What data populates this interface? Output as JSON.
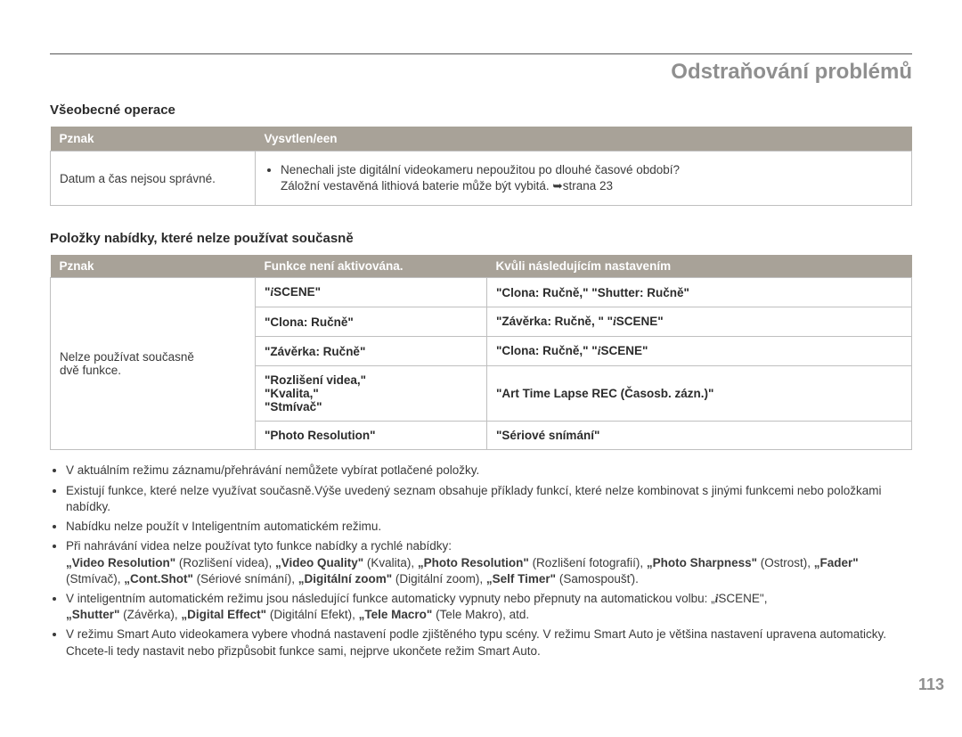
{
  "pageTitle": "Odstraňování problémů",
  "pageNumber": "113",
  "section1": {
    "heading": "Všeobecné operace",
    "headers": [
      "Pznak",
      "Vysvtlen/een"
    ],
    "row": {
      "symptom": "Datum a čas nejsou správné.",
      "line1": "Nenechali jste digitální videokameru nepoužitou po dlouhé časové období?",
      "line2a": "Záložní vestavěná lithiová baterie může být vybitá. ",
      "line2b": "strana 23"
    }
  },
  "section2": {
    "heading": "Položky nabídky, které nelze používat současně",
    "headers": [
      "Pznak",
      "Funkce není aktivována.",
      "Kvůli následujícím nastavením"
    ],
    "rowLabelA": "Nelze používat současně",
    "rowLabelB": "dvě funkce.",
    "rows": [
      {
        "func": "\"ℹSCENE\"",
        "due": "\"Clona: Ručně,\" \"Shutter: Ručně\""
      },
      {
        "func": "\"Clona: Ručně\"",
        "due": "\"Závěrka: Ručně, \" \"ℹSCENE\""
      },
      {
        "func": "\"Závěrka: Ručně\"",
        "due": "\"Clona: Ručně,\" \"ℹSCENE\""
      },
      {
        "func": "\"Rozlišení videa,\"\n\"Kvalita,\"\n\"Stmívač\"",
        "due": "\"Art Time Lapse REC (Časosb. zázn.)\""
      },
      {
        "func": "\"Photo Resolution\"",
        "due": "\"Sériové snímání\""
      }
    ]
  },
  "notes": {
    "n1": "V aktuálním režimu záznamu/přehrávání nemůžete vybírat potlačené položky.",
    "n2": "Existují funkce, které nelze využívat současně.Výše uvedený seznam obsahuje příklady funkcí, které nelze kombinovat s jinými funkcemi nebo položkami nabídky.",
    "n3": "Nabídku nelze použít v Inteligentním automatickém režimu.",
    "n4a": "Při nahrávání videa nelze používat tyto funkce nabídky a rychlé nabídky:",
    "n4b_parts": [
      {
        "b": "„Video Resolution\""
      },
      {
        "t": " (Rozlišení videa), "
      },
      {
        "b": "„Video Quality\""
      },
      {
        "t": " (Kvalita), "
      },
      {
        "b": "„Photo Resolution\""
      },
      {
        "t": " (Rozlišení fotografií), "
      },
      {
        "b": "„Photo Sharpness\""
      },
      {
        "t": " (Ostrost), "
      },
      {
        "b": "„Fader\""
      },
      {
        "t": " (Stmívač), "
      },
      {
        "b": "„Cont.Shot\""
      },
      {
        "t": " (Sériové snímání), "
      },
      {
        "b": "„Digitální zoom\""
      },
      {
        "t": " (Digitální zoom), "
      },
      {
        "b": "„Self Timer\""
      },
      {
        "t": " (Samospoušť)."
      }
    ],
    "n5a": "V inteligentním automatickém režimu jsou následující funkce automaticky vypnuty nebo přepnuty na automatickou volbu: „",
    "n5b": "SCENE\", ",
    "n5b2_parts": [
      {
        "b": "„Shutter\""
      },
      {
        "t": " (Závěrka), "
      },
      {
        "b": "„Digital Effect\""
      },
      {
        "t": " (Digitální Efekt), "
      },
      {
        "b": "„Tele Macro\""
      },
      {
        "t": " (Tele Makro), atd."
      }
    ],
    "n6": "V režimu Smart Auto videokamera vybere vhodná nastavení podle zjištěného typu scény. V režimu Smart Auto je většina nastavení upravena automaticky. Chcete-li tedy nastavit nebo přizpůsobit funkce sami, nejprve ukončete režim Smart Auto."
  },
  "style": {
    "headerBg": "#a8a298",
    "headerFg": "#ffffff",
    "border": "#bfbfbf",
    "titleColor": "#8f8f8f",
    "textColor": "#3a3a3a"
  }
}
